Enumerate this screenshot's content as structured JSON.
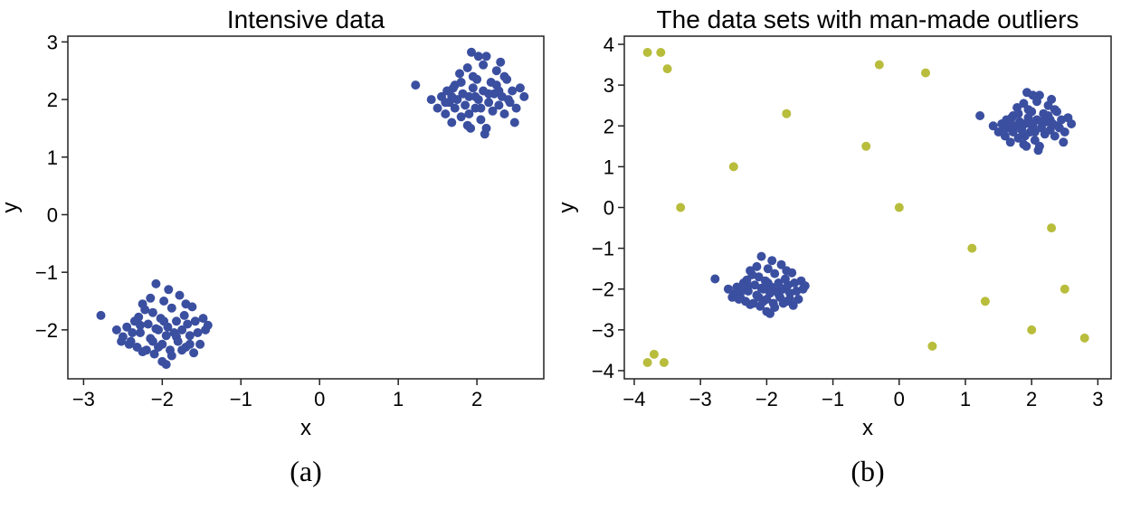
{
  "chart_data": [
    {
      "type": "scatter",
      "title": "Intensive data",
      "xlabel": "x",
      "ylabel": "y",
      "caption": "(a)",
      "xlim": [
        -3.2,
        2.85
      ],
      "ylim": [
        -2.85,
        3.1
      ],
      "xticks": [
        "−3",
        "−2",
        "−1",
        "0",
        "1",
        "2"
      ],
      "xtick_values": [
        -3,
        -2,
        -1,
        0,
        1,
        2
      ],
      "yticks": [
        "−2",
        "−1",
        "0",
        "1",
        "2",
        "3"
      ],
      "ytick_values": [
        -2,
        -1,
        0,
        1,
        2,
        3
      ],
      "grid": false,
      "series": [
        {
          "name": "data",
          "color": "#3b4fa0",
          "points": [
            [
              -2.78,
              -1.75
            ],
            [
              -2.58,
              -2.0
            ],
            [
              -2.5,
              -2.12
            ],
            [
              -2.45,
              -1.95
            ],
            [
              -2.4,
              -2.2
            ],
            [
              -2.35,
              -1.85
            ],
            [
              -2.32,
              -2.3
            ],
            [
              -2.28,
              -2.05
            ],
            [
              -2.25,
              -1.55
            ],
            [
              -2.2,
              -2.35
            ],
            [
              -2.18,
              -1.9
            ],
            [
              -2.15,
              -2.15
            ],
            [
              -2.12,
              -1.7
            ],
            [
              -2.1,
              -2.42
            ],
            [
              -2.08,
              -1.2
            ],
            [
              -2.05,
              -2.0
            ],
            [
              -2.02,
              -1.8
            ],
            [
              -2.0,
              -2.25
            ],
            [
              -1.98,
              -1.5
            ],
            [
              -1.95,
              -2.1
            ],
            [
              -1.93,
              -1.95
            ],
            [
              -1.9,
              -2.35
            ],
            [
              -1.88,
              -1.62
            ],
            [
              -1.85,
              -2.05
            ],
            [
              -1.82,
              -1.85
            ],
            [
              -1.8,
              -2.2
            ],
            [
              -1.78,
              -1.4
            ],
            [
              -1.75,
              -2.0
            ],
            [
              -1.72,
              -1.75
            ],
            [
              -1.7,
              -2.3
            ],
            [
              -1.68,
              -1.9
            ],
            [
              -1.65,
              -2.1
            ],
            [
              -1.62,
              -1.6
            ],
            [
              -1.6,
              -2.4
            ],
            [
              -1.58,
              -1.85
            ],
            [
              -1.55,
              -2.05
            ],
            [
              -1.52,
              -2.25
            ],
            [
              -1.48,
              -1.8
            ],
            [
              -1.45,
              -2.0
            ],
            [
              -1.42,
              -1.92
            ],
            [
              -2.0,
              -2.55
            ],
            [
              -1.95,
              -2.6
            ],
            [
              -2.22,
              -1.65
            ],
            [
              -2.3,
              -1.78
            ],
            [
              -1.88,
              -2.45
            ],
            [
              -2.05,
              -2.3
            ],
            [
              -1.7,
              -1.55
            ],
            [
              -2.38,
              -2.05
            ],
            [
              -2.12,
              -2.2
            ],
            [
              -1.98,
              -1.85
            ],
            [
              -2.25,
              -2.38
            ],
            [
              -1.82,
              -2.12
            ],
            [
              -2.15,
              -1.45
            ],
            [
              -1.65,
              -2.25
            ],
            [
              -2.42,
              -2.25
            ],
            [
              -2.52,
              -2.2
            ],
            [
              -1.92,
              -1.3
            ],
            [
              -1.75,
              -2.35
            ],
            [
              -2.08,
              -1.98
            ],
            [
              -2.28,
              -1.92
            ],
            [
              1.22,
              2.25
            ],
            [
              1.42,
              2.0
            ],
            [
              1.5,
              1.85
            ],
            [
              1.55,
              2.05
            ],
            [
              1.6,
              1.75
            ],
            [
              1.62,
              2.15
            ],
            [
              1.65,
              1.95
            ],
            [
              1.68,
              1.6
            ],
            [
              1.7,
              2.2
            ],
            [
              1.72,
              1.85
            ],
            [
              1.75,
              2.0
            ],
            [
              1.78,
              2.45
            ],
            [
              1.8,
              1.7
            ],
            [
              1.82,
              2.1
            ],
            [
              1.85,
              1.9
            ],
            [
              1.88,
              2.55
            ],
            [
              1.9,
              2.05
            ],
            [
              1.92,
              1.5
            ],
            [
              1.93,
              2.82
            ],
            [
              1.95,
              2.2
            ],
            [
              1.98,
              1.85
            ],
            [
              2.0,
              2.35
            ],
            [
              2.02,
              2.0
            ],
            [
              2.05,
              1.65
            ],
            [
              2.08,
              2.15
            ],
            [
              2.1,
              1.4
            ],
            [
              2.12,
              2.75
            ],
            [
              2.15,
              1.95
            ],
            [
              2.18,
              2.3
            ],
            [
              2.2,
              1.8
            ],
            [
              2.22,
              2.1
            ],
            [
              2.25,
              2.5
            ],
            [
              2.28,
              1.9
            ],
            [
              2.3,
              2.65
            ],
            [
              2.32,
              2.05
            ],
            [
              2.35,
              1.75
            ],
            [
              2.38,
              2.35
            ],
            [
              2.4,
              2.0
            ],
            [
              2.45,
              2.15
            ],
            [
              2.5,
              1.85
            ],
            [
              2.55,
              2.2
            ],
            [
              2.6,
              2.05
            ],
            [
              2.48,
              1.6
            ],
            [
              2.02,
              2.75
            ],
            [
              1.88,
              1.55
            ],
            [
              2.12,
              1.5
            ],
            [
              1.95,
              2.4
            ],
            [
              2.25,
              2.25
            ],
            [
              1.72,
              2.25
            ],
            [
              2.05,
              1.85
            ],
            [
              1.8,
              2.3
            ],
            [
              2.15,
              2.1
            ],
            [
              2.35,
              2.4
            ],
            [
              1.6,
              1.95
            ],
            [
              2.08,
              2.6
            ],
            [
              1.9,
              1.75
            ],
            [
              2.28,
              2.15
            ],
            [
              1.98,
              2.05
            ],
            [
              2.42,
              1.95
            ],
            [
              1.68,
              2.05
            ]
          ]
        }
      ]
    },
    {
      "type": "scatter",
      "title": "The data sets with man-made outliers",
      "xlabel": "x",
      "ylabel": "y",
      "caption": "(b)",
      "xlim": [
        -4.15,
        3.2
      ],
      "ylim": [
        -4.2,
        4.2
      ],
      "xticks": [
        "−4",
        "−3",
        "−2",
        "−1",
        "0",
        "1",
        "2",
        "3"
      ],
      "xtick_values": [
        -4,
        -3,
        -2,
        -1,
        0,
        1,
        2,
        3
      ],
      "yticks": [
        "−4",
        "−3",
        "−2",
        "−1",
        "0",
        "1",
        "2",
        "3",
        "4"
      ],
      "ytick_values": [
        -4,
        -3,
        -2,
        -1,
        0,
        1,
        2,
        3,
        4
      ],
      "grid": false,
      "series": [
        {
          "name": "data",
          "color": "#3b4fa0",
          "points": [
            [
              -2.78,
              -1.75
            ],
            [
              -2.58,
              -2.0
            ],
            [
              -2.5,
              -2.12
            ],
            [
              -2.45,
              -1.95
            ],
            [
              -2.4,
              -2.2
            ],
            [
              -2.35,
              -1.85
            ],
            [
              -2.32,
              -2.3
            ],
            [
              -2.28,
              -2.05
            ],
            [
              -2.25,
              -1.55
            ],
            [
              -2.2,
              -2.35
            ],
            [
              -2.18,
              -1.9
            ],
            [
              -2.15,
              -2.15
            ],
            [
              -2.12,
              -1.7
            ],
            [
              -2.1,
              -2.42
            ],
            [
              -2.08,
              -1.2
            ],
            [
              -2.05,
              -2.0
            ],
            [
              -2.02,
              -1.8
            ],
            [
              -2.0,
              -2.25
            ],
            [
              -1.98,
              -1.5
            ],
            [
              -1.95,
              -2.1
            ],
            [
              -1.93,
              -1.95
            ],
            [
              -1.9,
              -2.35
            ],
            [
              -1.88,
              -1.62
            ],
            [
              -1.85,
              -2.05
            ],
            [
              -1.82,
              -1.85
            ],
            [
              -1.8,
              -2.2
            ],
            [
              -1.78,
              -1.4
            ],
            [
              -1.75,
              -2.0
            ],
            [
              -1.72,
              -1.75
            ],
            [
              -1.7,
              -2.3
            ],
            [
              -1.68,
              -1.9
            ],
            [
              -1.65,
              -2.1
            ],
            [
              -1.62,
              -1.6
            ],
            [
              -1.6,
              -2.4
            ],
            [
              -1.58,
              -1.85
            ],
            [
              -1.55,
              -2.05
            ],
            [
              -1.52,
              -2.25
            ],
            [
              -1.48,
              -1.8
            ],
            [
              -1.45,
              -2.0
            ],
            [
              -1.42,
              -1.92
            ],
            [
              -2.0,
              -2.55
            ],
            [
              -1.95,
              -2.6
            ],
            [
              -2.22,
              -1.65
            ],
            [
              -2.3,
              -1.78
            ],
            [
              -1.88,
              -2.45
            ],
            [
              -2.05,
              -2.3
            ],
            [
              -1.7,
              -1.55
            ],
            [
              -2.38,
              -2.05
            ],
            [
              -2.12,
              -2.2
            ],
            [
              -1.98,
              -1.85
            ],
            [
              -2.25,
              -2.38
            ],
            [
              -1.82,
              -2.12
            ],
            [
              -2.15,
              -1.45
            ],
            [
              -1.65,
              -2.25
            ],
            [
              -2.42,
              -2.25
            ],
            [
              -2.52,
              -2.2
            ],
            [
              -1.92,
              -1.3
            ],
            [
              -1.75,
              -2.35
            ],
            [
              -2.08,
              -1.98
            ],
            [
              -2.28,
              -1.92
            ],
            [
              1.22,
              2.25
            ],
            [
              1.42,
              2.0
            ],
            [
              1.5,
              1.85
            ],
            [
              1.55,
              2.05
            ],
            [
              1.6,
              1.75
            ],
            [
              1.62,
              2.15
            ],
            [
              1.65,
              1.95
            ],
            [
              1.68,
              1.6
            ],
            [
              1.7,
              2.2
            ],
            [
              1.72,
              1.85
            ],
            [
              1.75,
              2.0
            ],
            [
              1.78,
              2.45
            ],
            [
              1.8,
              1.7
            ],
            [
              1.82,
              2.1
            ],
            [
              1.85,
              1.9
            ],
            [
              1.88,
              2.55
            ],
            [
              1.9,
              2.05
            ],
            [
              1.92,
              1.5
            ],
            [
              1.93,
              2.82
            ],
            [
              1.95,
              2.2
            ],
            [
              1.98,
              1.85
            ],
            [
              2.0,
              2.35
            ],
            [
              2.02,
              2.0
            ],
            [
              2.05,
              1.65
            ],
            [
              2.08,
              2.15
            ],
            [
              2.1,
              1.4
            ],
            [
              2.12,
              2.75
            ],
            [
              2.15,
              1.95
            ],
            [
              2.18,
              2.3
            ],
            [
              2.2,
              1.8
            ],
            [
              2.22,
              2.1
            ],
            [
              2.25,
              2.5
            ],
            [
              2.28,
              1.9
            ],
            [
              2.3,
              2.65
            ],
            [
              2.32,
              2.05
            ],
            [
              2.35,
              1.75
            ],
            [
              2.38,
              2.35
            ],
            [
              2.4,
              2.0
            ],
            [
              2.45,
              2.15
            ],
            [
              2.5,
              1.85
            ],
            [
              2.55,
              2.2
            ],
            [
              2.6,
              2.05
            ],
            [
              2.48,
              1.6
            ],
            [
              2.02,
              2.75
            ],
            [
              1.88,
              1.55
            ],
            [
              2.12,
              1.5
            ],
            [
              1.95,
              2.4
            ],
            [
              2.25,
              2.25
            ],
            [
              1.72,
              2.25
            ],
            [
              2.05,
              1.85
            ],
            [
              1.8,
              2.3
            ],
            [
              2.15,
              2.1
            ],
            [
              2.35,
              2.4
            ],
            [
              1.6,
              1.95
            ],
            [
              2.08,
              2.6
            ],
            [
              1.9,
              1.75
            ],
            [
              2.28,
              2.15
            ],
            [
              1.98,
              2.05
            ],
            [
              2.42,
              1.95
            ],
            [
              1.68,
              2.05
            ]
          ]
        },
        {
          "name": "outliers",
          "color": "#b8bd3c",
          "points": [
            [
              -3.8,
              3.8
            ],
            [
              -3.6,
              3.8
            ],
            [
              -3.5,
              3.4
            ],
            [
              -0.3,
              3.5
            ],
            [
              0.4,
              3.3
            ],
            [
              -1.7,
              2.3
            ],
            [
              -0.5,
              1.5
            ],
            [
              -2.5,
              1.0
            ],
            [
              -3.3,
              0.0
            ],
            [
              0.0,
              0.0
            ],
            [
              2.3,
              -0.5
            ],
            [
              1.1,
              -1.0
            ],
            [
              2.5,
              -2.0
            ],
            [
              1.3,
              -2.3
            ],
            [
              2.0,
              -3.0
            ],
            [
              2.8,
              -3.2
            ],
            [
              0.5,
              -3.4
            ],
            [
              -3.7,
              -3.6
            ],
            [
              -3.8,
              -3.8
            ],
            [
              -3.55,
              -3.8
            ]
          ]
        }
      ]
    }
  ]
}
